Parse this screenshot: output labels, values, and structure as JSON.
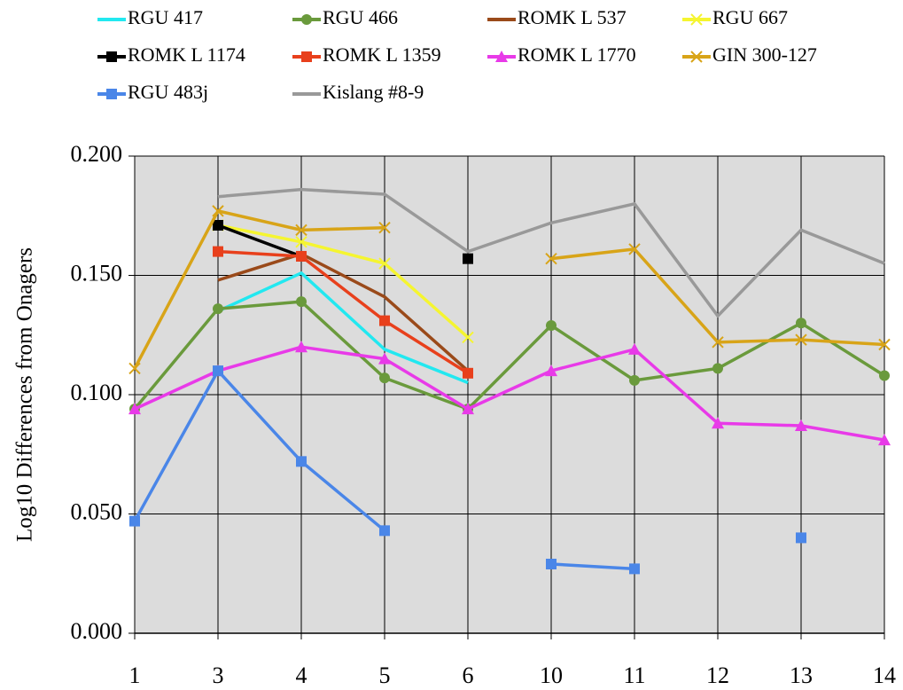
{
  "chart_data": {
    "type": "line",
    "y_label": "Log10 Differences from  Onagers",
    "categories": [
      "1",
      "3",
      "4",
      "5",
      "6",
      "10",
      "11",
      "12",
      "13",
      "14"
    ],
    "ylim": [
      0,
      0.2
    ],
    "yticks": [
      {
        "value": 0,
        "label": "0.000"
      },
      {
        "value": 0.05,
        "label": "0.050"
      },
      {
        "value": 0.1,
        "label": "0.100"
      },
      {
        "value": 0.15,
        "label": "0.150"
      },
      {
        "value": 0.2,
        "label": "0.200"
      }
    ],
    "grid": true,
    "legend": "top",
    "series": [
      {
        "name": "RGU 417",
        "color": "#22e8f0",
        "marker": "none",
        "values": [
          null,
          0.135,
          0.151,
          0.119,
          0.105,
          null,
          null,
          null,
          null,
          null
        ]
      },
      {
        "name": "RGU 466",
        "color": "#6a9a3c",
        "marker": "circle",
        "values": [
          0.094,
          0.136,
          0.139,
          0.107,
          0.094,
          0.129,
          0.106,
          0.111,
          0.13,
          0.108
        ]
      },
      {
        "name": "ROMK L 537",
        "color": "#9a4a1a",
        "marker": "none",
        "values": [
          null,
          0.148,
          0.159,
          0.141,
          0.11,
          null,
          null,
          null,
          null,
          null
        ]
      },
      {
        "name": "RGU 667",
        "color": "#f5f530",
        "marker": "x",
        "values": [
          null,
          0.171,
          0.164,
          0.155,
          0.124,
          null,
          null,
          null,
          null,
          null
        ]
      },
      {
        "name": "ROMK L 1174",
        "color": "#000000",
        "marker": "square",
        "values": [
          null,
          0.171,
          0.158,
          null,
          0.157,
          null,
          null,
          null,
          null,
          null
        ]
      },
      {
        "name": "ROMK L 1359",
        "color": "#e8401c",
        "marker": "square",
        "values": [
          null,
          0.16,
          0.158,
          0.131,
          0.109,
          null,
          null,
          null,
          null,
          null
        ]
      },
      {
        "name": "ROMK L 1770",
        "color": "#e83ae8",
        "marker": "triangle",
        "values": [
          0.094,
          0.11,
          0.12,
          0.115,
          0.094,
          0.11,
          0.119,
          0.088,
          0.087,
          0.081
        ]
      },
      {
        "name": "GIN 300-127",
        "color": "#d8a418",
        "marker": "x",
        "values": [
          0.111,
          0.177,
          0.169,
          0.17,
          null,
          0.157,
          0.161,
          0.122,
          0.123,
          0.121
        ]
      },
      {
        "name": "RGU 483j",
        "color": "#4a86e8",
        "marker": "square",
        "values": [
          0.047,
          0.11,
          0.072,
          0.043,
          null,
          0.029,
          0.027,
          null,
          0.04,
          null
        ]
      },
      {
        "name": "Kislang #8-9",
        "color": "#999999",
        "marker": "none",
        "values": [
          null,
          0.183,
          0.186,
          0.184,
          0.16,
          0.172,
          0.18,
          0.133,
          0.169,
          0.155
        ]
      }
    ]
  }
}
